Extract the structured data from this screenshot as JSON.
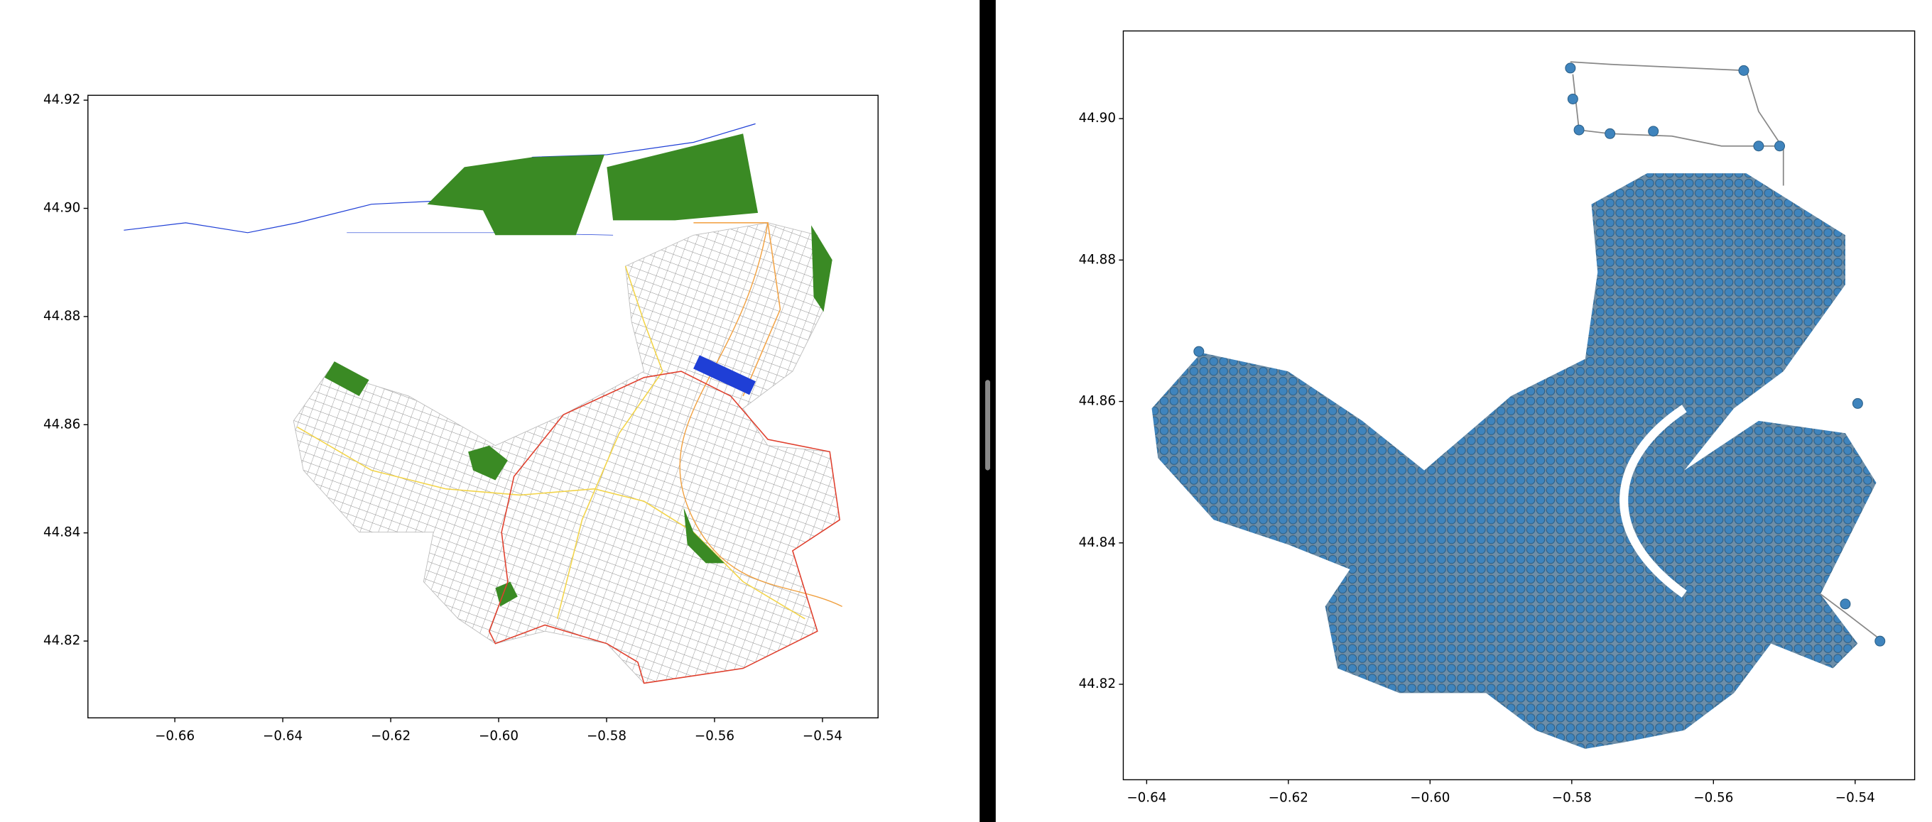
{
  "chart_data": [
    {
      "type": "map",
      "xlim": [
        -0.6761,
        -0.5297
      ],
      "ylim": [
        44.8058,
        44.9209
      ],
      "xticks": [
        {
          "value": -0.66,
          "label": "−0.66"
        },
        {
          "value": -0.64,
          "label": "−0.64"
        },
        {
          "value": -0.62,
          "label": "−0.62"
        },
        {
          "value": -0.6,
          "label": "−0.60"
        },
        {
          "value": -0.58,
          "label": "−0.58"
        },
        {
          "value": -0.56,
          "label": "−0.56"
        },
        {
          "value": -0.54,
          "label": "−0.54"
        }
      ],
      "yticks": [
        44.82,
        44.84,
        44.86,
        44.88,
        {
          "value": 44.9,
          "label": "44.90"
        },
        44.92
      ]
    },
    {
      "type": "network",
      "xlim": [
        -0.6433,
        -0.5316
      ],
      "ylim": [
        44.8065,
        44.9124
      ],
      "xticks": [
        {
          "value": -0.64,
          "label": "−0.64"
        },
        {
          "value": -0.62,
          "label": "−0.62"
        },
        {
          "value": -0.6,
          "label": "−0.60"
        },
        {
          "value": -0.58,
          "label": "−0.58"
        },
        {
          "value": -0.56,
          "label": "−0.56"
        },
        {
          "value": -0.54,
          "label": "−0.54"
        }
      ],
      "yticks": [
        44.82,
        44.84,
        44.86,
        44.88,
        {
          "value": 44.9,
          "label": "44.90"
        }
      ]
    }
  ]
}
